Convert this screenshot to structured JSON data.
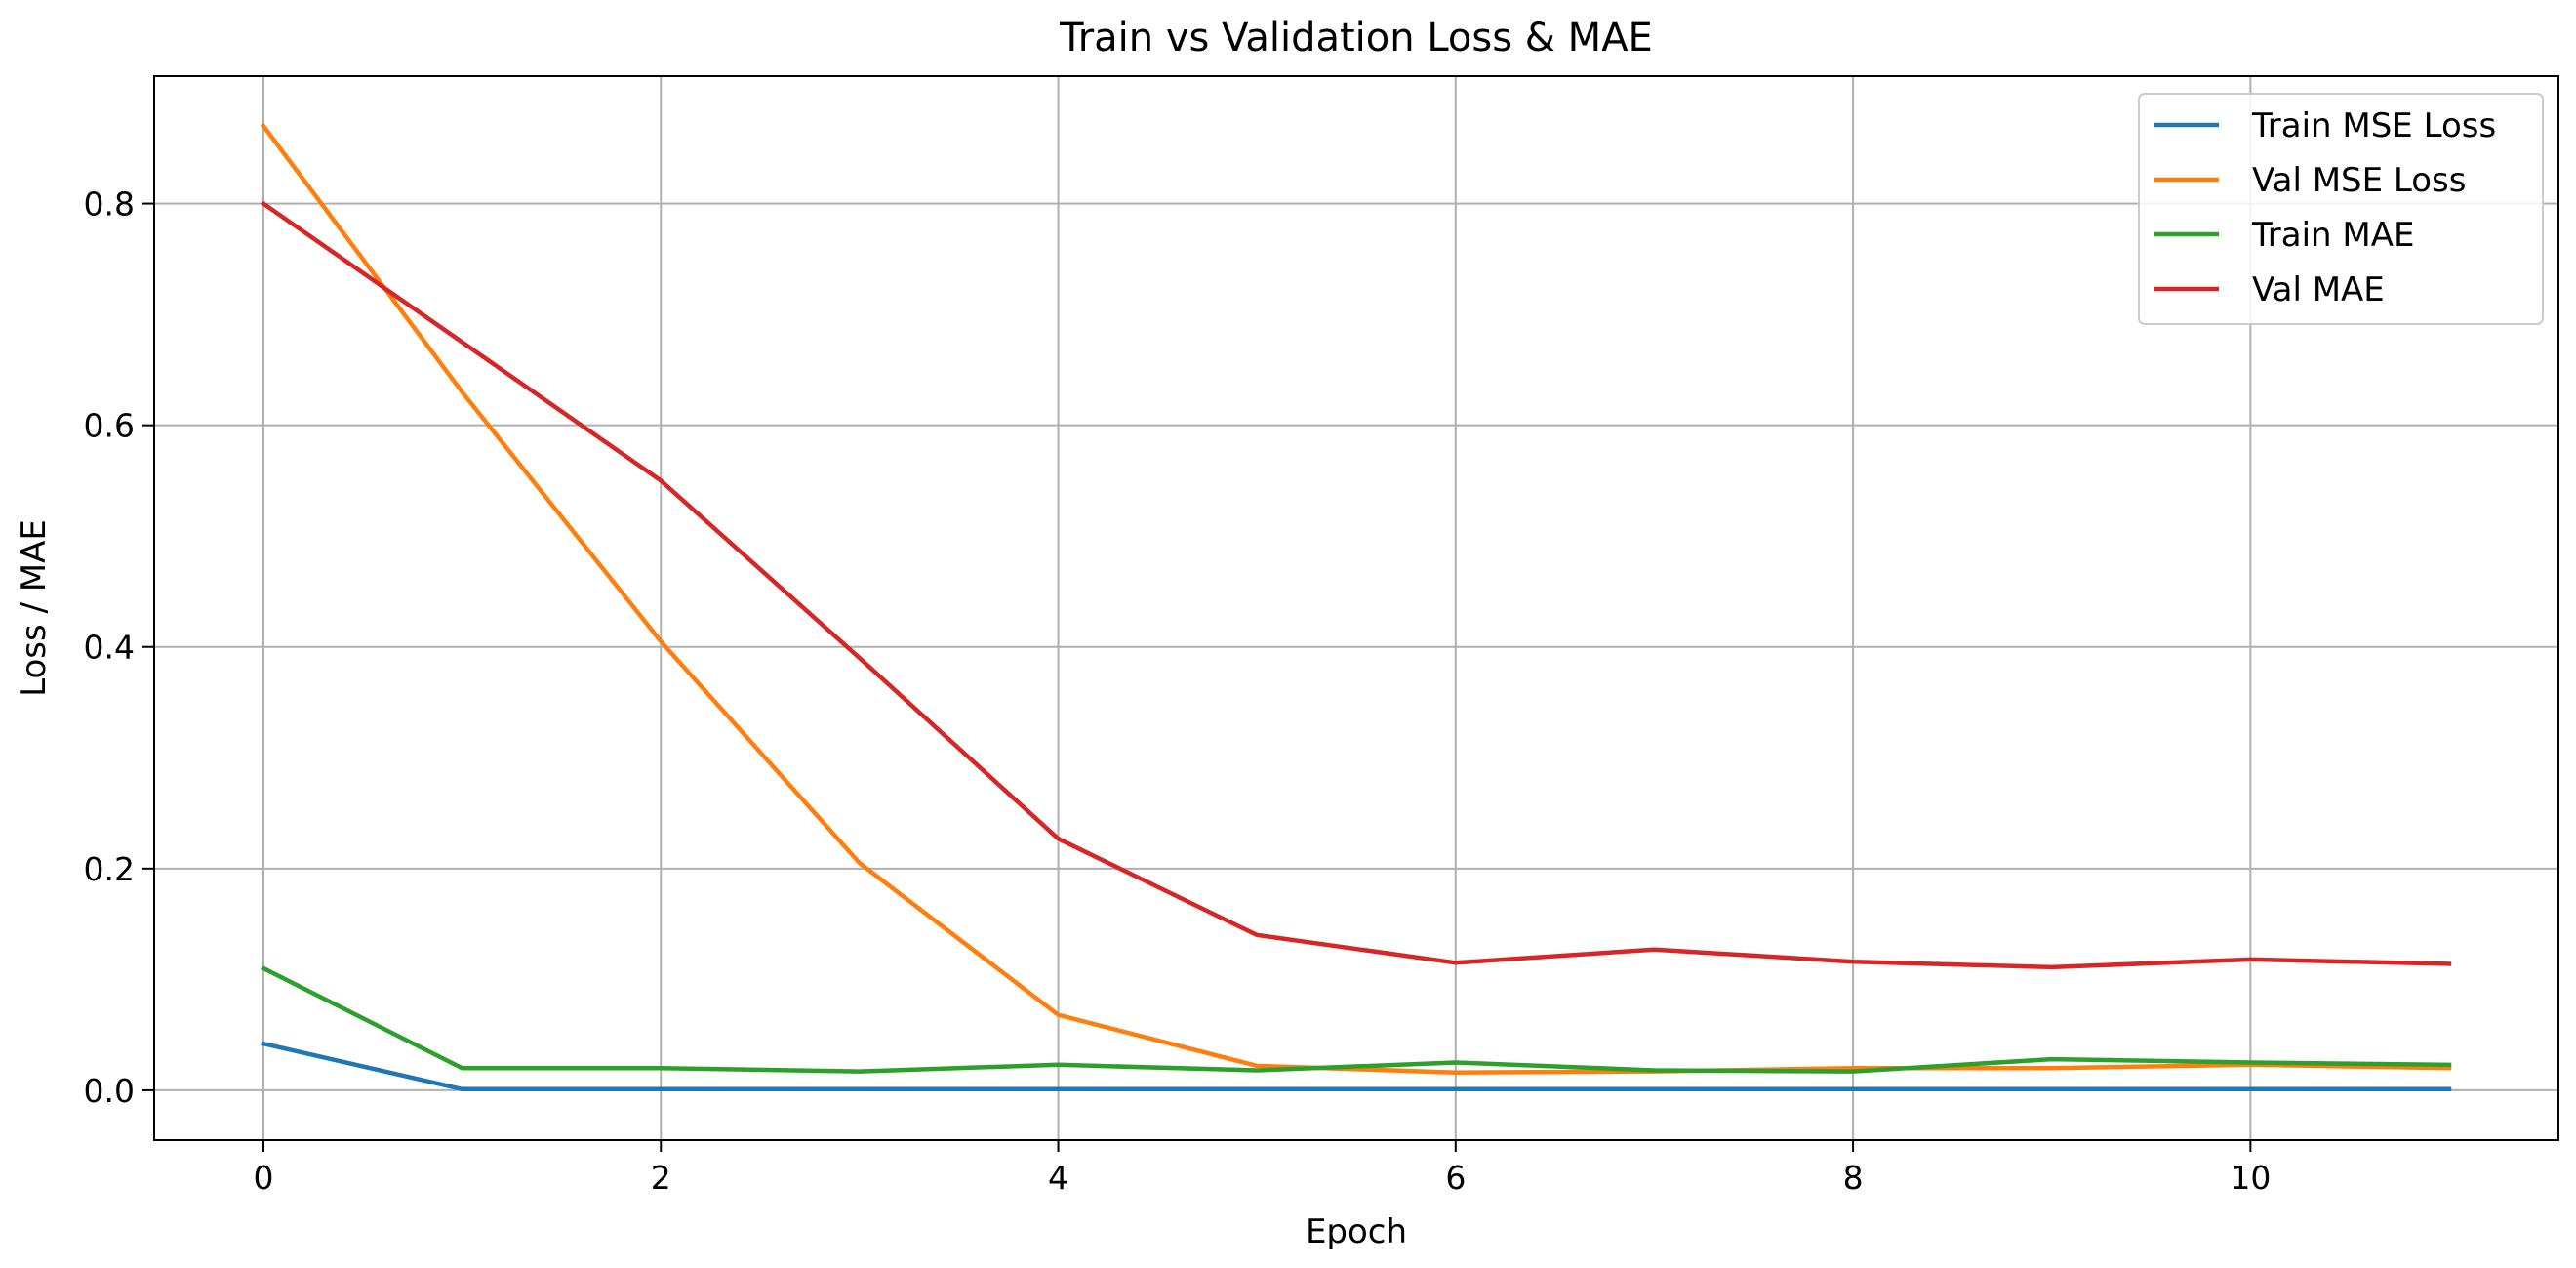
{
  "chart_data": {
    "type": "line",
    "title": "Train vs Validation Loss & MAE",
    "xlabel": "Epoch",
    "ylabel": "Loss / MAE",
    "x": [
      0,
      1,
      2,
      3,
      4,
      5,
      6,
      7,
      8,
      9,
      10,
      11
    ],
    "xlim": [
      -0.55,
      11.55
    ],
    "ylim": [
      -0.045,
      0.915
    ],
    "xticks": [
      0,
      2,
      4,
      6,
      8,
      10
    ],
    "xtick_labels": [
      "0",
      "2",
      "4",
      "6",
      "8",
      "10"
    ],
    "yticks": [
      0.0,
      0.2,
      0.4,
      0.6,
      0.8
    ],
    "ytick_labels": [
      "0.0",
      "0.2",
      "0.4",
      "0.6",
      "0.8"
    ],
    "grid": true,
    "legend_position": "top-right",
    "series": [
      {
        "name": "Train MSE Loss",
        "color": "#1f77b4",
        "values": [
          0.042,
          0.001,
          0.001,
          0.001,
          0.001,
          0.001,
          0.001,
          0.001,
          0.001,
          0.001,
          0.001,
          0.001
        ]
      },
      {
        "name": "Val MSE Loss",
        "color": "#ff7f0e",
        "values": [
          0.87,
          0.63,
          0.405,
          0.205,
          0.068,
          0.022,
          0.016,
          0.017,
          0.02,
          0.02,
          0.023,
          0.02
        ]
      },
      {
        "name": "Train MAE",
        "color": "#2ca02c",
        "values": [
          0.11,
          0.02,
          0.02,
          0.017,
          0.023,
          0.018,
          0.025,
          0.018,
          0.017,
          0.028,
          0.025,
          0.023
        ]
      },
      {
        "name": "Val MAE",
        "color": "#d62728",
        "values": [
          0.8,
          0.675,
          0.55,
          0.39,
          0.227,
          0.14,
          0.115,
          0.127,
          0.116,
          0.111,
          0.118,
          0.114
        ]
      }
    ]
  }
}
